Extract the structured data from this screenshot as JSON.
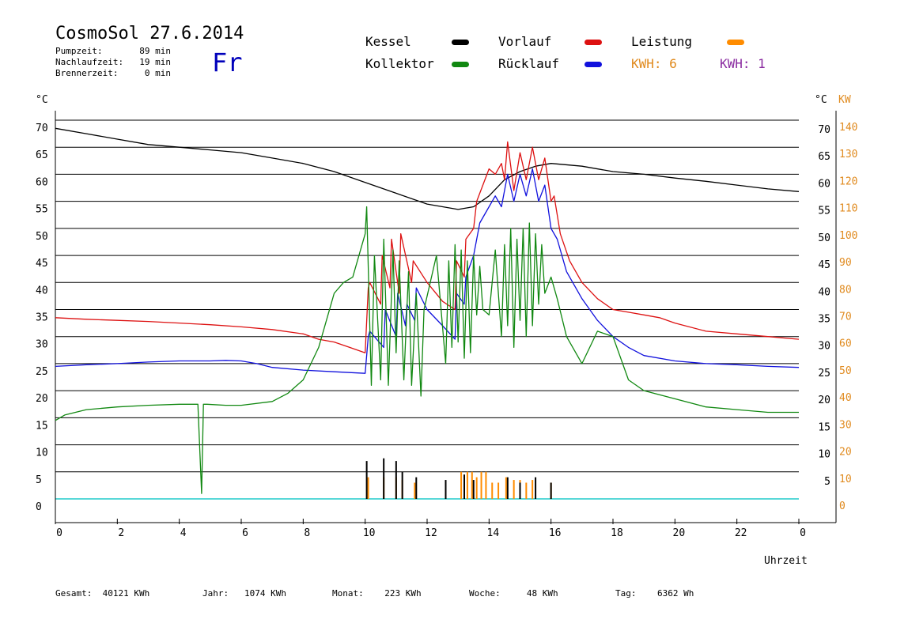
{
  "header": {
    "title": "CosmoSol 27.6.2014",
    "day": "Fr",
    "stats": [
      {
        "label": "Pumpzeit:",
        "value": "89 min"
      },
      {
        "label": "Nachlaufzeit:",
        "value": "19 min"
      },
      {
        "label": "Brennerzeit:",
        "value": "0 min"
      }
    ]
  },
  "legend": [
    {
      "label": "Kessel",
      "color": "#000000"
    },
    {
      "label": "Vorlauf",
      "color": "#dd1111"
    },
    {
      "label": "Leistung",
      "color": "#ff8c00"
    },
    {
      "label": "Kollektor",
      "color": "#118811"
    },
    {
      "label": "Rücklauf",
      "color": "#1111dd"
    }
  ],
  "kwh": [
    {
      "text": "KWH: 6",
      "color": "#e08a1e"
    },
    {
      "text": "KWH: 1",
      "color": "#8a2ba0"
    }
  ],
  "axes": {
    "left_unit": "°C",
    "right_unit_c": "°C",
    "right_unit_kw": "KW",
    "xlabel": "Uhrzeit"
  },
  "footer": [
    {
      "label": "Gesamt:",
      "value": "40121 KWh"
    },
    {
      "label": "Jahr:",
      "value": "1074 KWh"
    },
    {
      "label": "Monat:",
      "value": "223 KWh"
    },
    {
      "label": "Woche:",
      "value": "48 KWh"
    },
    {
      "label": "Tag:",
      "value": "6362 Wh"
    }
  ],
  "chart_data": {
    "type": "line",
    "xlabel": "Uhrzeit",
    "xlim": [
      0,
      24
    ],
    "ylim": [
      0,
      70
    ],
    "grid": true,
    "x_ticks": [
      "0",
      "2",
      "4",
      "6",
      "8",
      "10",
      "12",
      "14",
      "16",
      "18",
      "20",
      "22",
      "0"
    ],
    "y_ticks_left": [
      0,
      5,
      10,
      15,
      20,
      25,
      30,
      35,
      40,
      45,
      50,
      55,
      60,
      65,
      70
    ],
    "y_ticks_right_c": [
      "",
      "5",
      "10",
      "15",
      "20",
      "25",
      "30",
      "35",
      "40",
      "45",
      "50",
      "55",
      "60",
      "65",
      "70"
    ],
    "y_ticks_right_kw": [
      "0",
      "10",
      "20",
      "30",
      "40",
      "50",
      "60",
      "70",
      "80",
      "90",
      "100",
      "110",
      "120",
      "130",
      "140"
    ],
    "zero_line_color": "#22cccc",
    "series": [
      {
        "name": "Kessel",
        "color": "#000000",
        "x": [
          0,
          1,
          2,
          3,
          4,
          5,
          6,
          7,
          8,
          9,
          10,
          11,
          12,
          13,
          13.5,
          14,
          14.5,
          15,
          15.5,
          16,
          17,
          18,
          19,
          20,
          21,
          22,
          23,
          24
        ],
        "y": [
          68.5,
          67.5,
          66.5,
          65.5,
          65,
          64.5,
          64,
          63,
          62,
          60.5,
          58.5,
          56.5,
          54.5,
          53.5,
          54,
          56,
          59,
          60.5,
          61.5,
          62,
          61.5,
          60.5,
          60,
          59.3,
          58.7,
          58,
          57.3,
          56.8
        ]
      },
      {
        "name": "Vorlauf",
        "color": "#dd1111",
        "x": [
          0,
          1,
          2,
          3,
          4,
          5,
          6,
          7,
          8,
          8.5,
          9,
          9.5,
          10,
          10.1,
          10.15,
          10.5,
          10.55,
          10.8,
          10.85,
          11.1,
          11.15,
          11.5,
          11.55,
          12,
          12.5,
          12.9,
          12.95,
          13.2,
          13.25,
          13.5,
          13.6,
          14,
          14.2,
          14.4,
          14.5,
          14.6,
          14.8,
          15,
          15.2,
          15.4,
          15.6,
          15.8,
          16,
          16.1,
          16.3,
          16.6,
          17,
          17.5,
          18,
          18.5,
          19,
          19.5,
          20,
          21,
          22,
          23,
          24
        ],
        "y": [
          33.5,
          33.2,
          33,
          32.8,
          32.5,
          32.2,
          31.8,
          31.3,
          30.5,
          29.5,
          29,
          28,
          27,
          39,
          40,
          36,
          45,
          39,
          48,
          38,
          49,
          40,
          44,
          40,
          36.5,
          35,
          44,
          41,
          48,
          50,
          55,
          61,
          60,
          62,
          59,
          66,
          57,
          64,
          59,
          65,
          59,
          63,
          55,
          56,
          49,
          44,
          40,
          37,
          35,
          34.5,
          34,
          33.5,
          32.5,
          31,
          30.5,
          30,
          29.5
        ]
      },
      {
        "name": "Rücklauf",
        "color": "#1111dd",
        "x": [
          0,
          1,
          2,
          3,
          4,
          5,
          5.5,
          6,
          6.5,
          7,
          8,
          9,
          10,
          10.1,
          10.15,
          10.6,
          10.65,
          11,
          11.05,
          11.3,
          11.35,
          11.6,
          11.65,
          12,
          12.5,
          12.9,
          12.95,
          13.2,
          13.25,
          13.5,
          13.7,
          14,
          14.2,
          14.4,
          14.6,
          14.8,
          15,
          15.2,
          15.4,
          15.6,
          15.8,
          16,
          16.2,
          16.5,
          17,
          17.5,
          18,
          18.5,
          19,
          20,
          21,
          22,
          23,
          24
        ],
        "y": [
          24.5,
          24.8,
          25,
          25.3,
          25.5,
          25.5,
          25.6,
          25.5,
          25,
          24.3,
          23.8,
          23.5,
          23.2,
          30,
          31,
          28,
          35,
          30,
          38,
          32,
          36,
          33,
          39,
          35,
          32,
          29.5,
          38,
          36,
          41,
          45,
          51,
          54,
          56,
          54,
          60,
          55,
          60,
          56,
          61,
          55,
          58,
          50,
          48,
          42,
          37,
          33,
          30,
          28,
          26.5,
          25.5,
          25,
          24.8,
          24.5,
          24.3
        ]
      },
      {
        "name": "Kollektor",
        "color": "#118811",
        "x": [
          0,
          0.3,
          1,
          2,
          3,
          4,
          4.6,
          4.72,
          4.78,
          4.9,
          5.5,
          6,
          7,
          7.5,
          8,
          8.5,
          9,
          9.3,
          9.6,
          10,
          10.05,
          10.2,
          10.3,
          10.5,
          10.6,
          10.75,
          10.9,
          11.0,
          11.1,
          11.25,
          11.4,
          11.5,
          11.65,
          11.8,
          11.9,
          12.3,
          12.6,
          12.7,
          12.8,
          12.9,
          13.0,
          13.1,
          13.2,
          13.3,
          13.4,
          13.5,
          13.6,
          13.7,
          13.8,
          14,
          14.2,
          14.4,
          14.5,
          14.6,
          14.7,
          14.8,
          14.9,
          15,
          15.1,
          15.2,
          15.3,
          15.4,
          15.5,
          15.6,
          15.7,
          15.8,
          16,
          16.2,
          16.5,
          17,
          17.5,
          18,
          18.5,
          19,
          20,
          21,
          22,
          23,
          24
        ],
        "y": [
          14.5,
          15.5,
          16.5,
          17,
          17.3,
          17.5,
          17.5,
          1,
          17.5,
          17.5,
          17.3,
          17.3,
          18,
          19.5,
          22,
          28,
          38,
          40,
          41,
          49,
          54,
          21,
          45,
          22,
          48,
          21,
          46,
          27,
          44,
          22,
          42,
          21,
          38,
          19,
          35,
          45,
          25,
          44,
          28,
          47,
          29,
          46,
          26,
          44,
          27,
          45,
          34,
          43,
          35,
          34,
          46,
          30,
          47,
          32,
          50,
          28,
          48,
          33,
          50,
          30,
          51,
          32,
          49,
          36,
          47,
          38,
          41,
          37,
          30,
          25,
          31,
          30,
          22,
          20,
          18.5,
          17,
          16.5,
          16,
          16
        ]
      }
    ],
    "impulse_series": [
      {
        "name": "Leistung",
        "color": "#ff8c00",
        "x": [
          10.1,
          10.6,
          11.0,
          11.2,
          11.6,
          12.6,
          13.1,
          13.3,
          13.45,
          13.6,
          13.75,
          13.9,
          14.1,
          14.3,
          14.55,
          14.8,
          15.0,
          15.2,
          15.4,
          16.0
        ],
        "y": [
          4,
          4,
          4,
          3.5,
          3,
          3,
          5,
          5,
          5,
          4,
          5,
          5,
          3,
          3,
          4,
          3.5,
          3.5,
          3,
          3.5,
          3
        ]
      },
      {
        "name": "Kessel",
        "color": "#000000",
        "x": [
          10.05,
          10.6,
          11.0,
          11.2,
          11.65,
          12.6,
          13.2,
          13.5,
          14.6,
          15.0,
          15.5,
          16.0
        ],
        "y": [
          7,
          7.5,
          7,
          5,
          4,
          3.5,
          4.5,
          3.5,
          4,
          3,
          4,
          3
        ]
      }
    ]
  }
}
